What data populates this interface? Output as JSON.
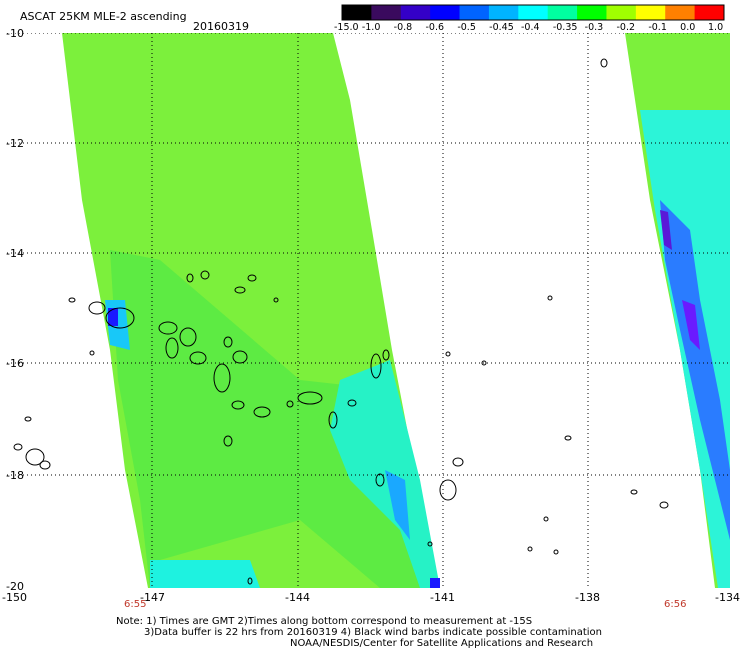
{
  "title": "ASCAT 25KM MLE-2 ascending",
  "date": "20160319",
  "colorbar": {
    "labels": [
      "-15.0",
      "-1.0",
      "-0.8",
      "-0.6",
      "-0.5",
      "-0.45",
      "-0.4",
      "-0.35",
      "-0.3",
      "-0.2",
      "-0.1",
      "0.0",
      "1.0"
    ],
    "colors": [
      "#000000",
      "#3a0a5e",
      "#3400c8",
      "#0000ff",
      "#0064ff",
      "#00b4ff",
      "#00ffff",
      "#00ffa0",
      "#00ff00",
      "#a0ff00",
      "#ffff00",
      "#ff8000",
      "#ff0000"
    ]
  },
  "axes": {
    "lat_labels": [
      "-10",
      "-12",
      "-14",
      "-16",
      "-18",
      "-20"
    ],
    "lon_labels": [
      "-150",
      "-147",
      "-144",
      "-141",
      "-138",
      "-134"
    ]
  },
  "pass_times": [
    "6:55",
    "6:56"
  ],
  "notes": [
    "Note: 1) Times are GMT 2)Times along bottom correspond to measurement at -15S",
    "3)Data buffer is 22 hrs from 20160319 4) Black wind barbs indicate possible contamination",
    "NOAA/NESDIS/Center for Satellite Applications and Research"
  ]
}
